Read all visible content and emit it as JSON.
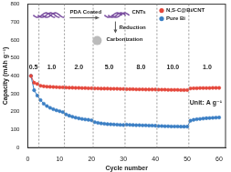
{
  "chart_data": {
    "type": "line",
    "x_label": "Cycle number",
    "y_label": "Capacity (mAh g⁻¹)",
    "x": [
      1,
      2,
      3,
      4,
      5,
      6,
      7,
      8,
      9,
      10,
      11,
      12,
      13,
      14,
      15,
      16,
      17,
      18,
      19,
      20,
      21,
      22,
      23,
      24,
      25,
      26,
      27,
      28,
      29,
      30,
      31,
      32,
      33,
      34,
      35,
      36,
      37,
      38,
      39,
      40,
      41,
      42,
      43,
      44,
      45,
      46,
      47,
      48,
      49,
      50,
      51,
      52,
      53,
      54,
      55,
      56,
      57,
      58,
      59,
      60
    ],
    "series": [
      {
        "name": "N,S-C@Bi/CNT",
        "color": "#e4473b",
        "marker": "circle",
        "line_style": "solid",
        "values": [
          400,
          362,
          355,
          345,
          342,
          340,
          339,
          338,
          337,
          336,
          336,
          335,
          334,
          334,
          333,
          333,
          332,
          332,
          331,
          331,
          330,
          330,
          329,
          329,
          329,
          328,
          328,
          328,
          327,
          327,
          326,
          326,
          326,
          325,
          325,
          325,
          324,
          324,
          324,
          324,
          323,
          323,
          323,
          322,
          322,
          322,
          322,
          321,
          321,
          321,
          330,
          331,
          331,
          332,
          332,
          332,
          332,
          333,
          333,
          333
        ]
      },
      {
        "name": "Pure Bi",
        "color": "#3b7fc4",
        "marker": "circle",
        "line_style": "solid",
        "values": [
          400,
          320,
          290,
          265,
          245,
          232,
          222,
          214,
          208,
          203,
          198,
          185,
          178,
          172,
          167,
          163,
          160,
          157,
          155,
          152,
          142,
          138,
          135,
          133,
          131,
          130,
          129,
          128,
          127,
          126,
          128,
          127,
          126,
          125,
          125,
          124,
          124,
          123,
          123,
          122,
          120,
          120,
          119,
          119,
          118,
          118,
          118,
          117,
          117,
          117,
          150,
          155,
          158,
          160,
          162,
          164,
          165,
          166,
          167,
          168
        ]
      }
    ],
    "xlim": [
      0,
      62
    ],
    "xticks": [
      0,
      10,
      20,
      30,
      40,
      50,
      60
    ],
    "ylim": [
      0,
      800
    ],
    "yticks": [
      0,
      100,
      200,
      300,
      400,
      500,
      600,
      700,
      800
    ],
    "grid": false,
    "legend": "upper right",
    "boundaries": [
      3.5,
      11.5,
      20.5,
      30.5,
      40.5,
      50.5
    ],
    "rate_labels": [
      "0.5",
      "1.0",
      "2.0",
      "5.0",
      "8.0",
      "10.0",
      "1.0"
    ],
    "unit_label": "Unit: A g⁻¹",
    "annotations": [
      "PDA Coated",
      "CNTs",
      "Reduction",
      "Carbonization"
    ]
  }
}
